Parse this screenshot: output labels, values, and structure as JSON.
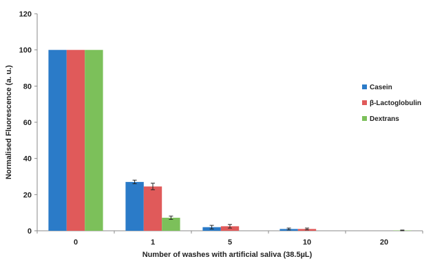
{
  "chart_data": {
    "type": "bar",
    "title": "",
    "xlabel": "Number of washes with artificial saliva (38.5µL)",
    "ylabel": "Normalised Fluorescence (a. u.)",
    "categories": [
      "0",
      "1",
      "5",
      "10",
      "20"
    ],
    "ylim": [
      0,
      120
    ],
    "yticks": [
      0,
      20,
      40,
      60,
      80,
      100,
      120
    ],
    "grid": false,
    "legend_position": "right",
    "series": [
      {
        "name": "Casein",
        "color": "#2b7bc8",
        "values": [
          100,
          27,
          2,
          1,
          0
        ],
        "errors": [
          0,
          1.0,
          1.0,
          0.5,
          0
        ]
      },
      {
        "name": "β-Lactoglobulin",
        "color": "#e05a5a",
        "values": [
          100,
          24.5,
          2.5,
          1,
          0
        ],
        "errors": [
          0,
          1.8,
          1.0,
          0.5,
          0
        ]
      },
      {
        "name": "Dextrans",
        "color": "#7cc05a",
        "values": [
          100,
          7.2,
          0,
          0,
          0.2
        ],
        "errors": [
          0,
          0.9,
          0,
          0,
          0.2
        ]
      }
    ]
  }
}
